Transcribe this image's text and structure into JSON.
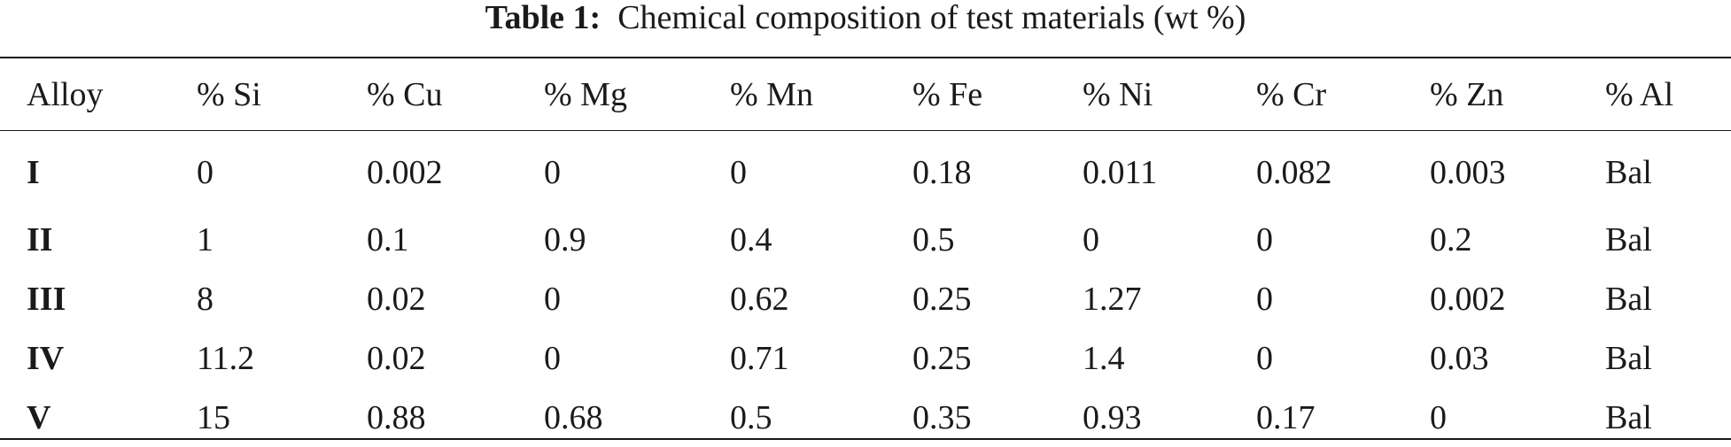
{
  "caption": {
    "label": "Table 1:",
    "text": "Chemical composition of test materials (wt %)"
  },
  "table": {
    "headers": [
      "Alloy",
      "% Si",
      "% Cu",
      "% Mg",
      "% Mn",
      "% Fe",
      "% Ni",
      "% Cr",
      "% Zn",
      "% Al"
    ],
    "rows": [
      [
        "I",
        "0",
        "0.002",
        "0",
        "0",
        "0.18",
        "0.011",
        "0.082",
        "0.003",
        "Bal"
      ],
      [
        "II",
        "1",
        "0.1",
        "0.9",
        "0.4",
        "0.5",
        "0",
        "0",
        "0.2",
        "Bal"
      ],
      [
        "III",
        "8",
        "0.02",
        "0",
        "0.62",
        "0.25",
        "1.27",
        "0",
        "0.002",
        "Bal"
      ],
      [
        "IV",
        "11.2",
        "0.02",
        "0",
        "0.71",
        "0.25",
        "1.4",
        "0",
        "0.03",
        "Bal"
      ],
      [
        "V",
        "15",
        "0.88",
        "0.68",
        "0.5",
        "0.35",
        "0.93",
        "0.17",
        "0",
        "Bal"
      ]
    ]
  }
}
